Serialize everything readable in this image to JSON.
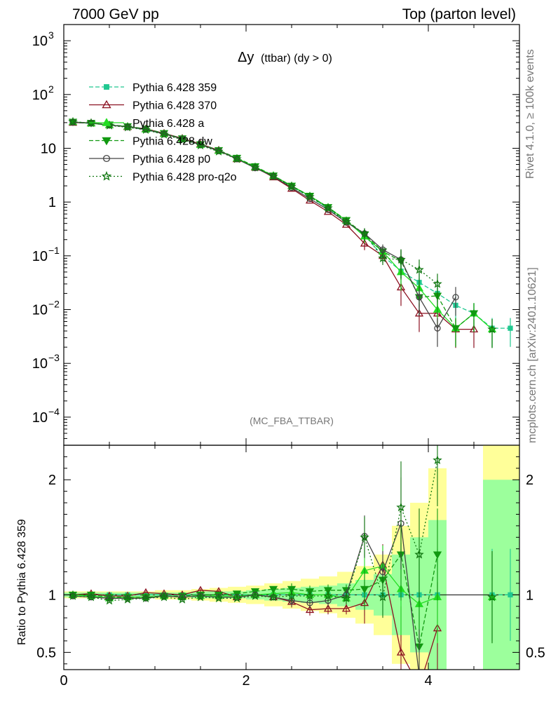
{
  "header": {
    "left": "7000 GeV pp",
    "right": "Top (parton level)"
  },
  "side": {
    "rivet": "Rivet 4.1.0, ≥ 100k events",
    "mcplots": "mcplots.cern.ch [arXiv:2401.10621]"
  },
  "colors": {
    "ref_band_inner": "#9cff9c",
    "ref_band_outer": "#ffff99"
  },
  "chart_data": {
    "type": "line",
    "title_main": "Δy",
    "title_sub": "(ttbar) (dy > 0)",
    "watermark": "(MC_FBA_TTBAR)",
    "xlim": [
      0,
      5.0
    ],
    "x_ticks": [
      "0",
      "2",
      "4"
    ],
    "x_tick_values": [
      0,
      2,
      4
    ],
    "main": {
      "yscale": "log",
      "ylim": [
        3e-05,
        2000
      ],
      "y_ticks": [
        {
          "v": 1000,
          "base": "10",
          "exp": "3"
        },
        {
          "v": 100,
          "base": "10",
          "exp": "2"
        },
        {
          "v": 10,
          "base": "10",
          "exp": ""
        },
        {
          "v": 1,
          "base": "1",
          "exp": ""
        },
        {
          "v": 0.1,
          "base": "10",
          "exp": "−1"
        },
        {
          "v": 0.01,
          "base": "10",
          "exp": "−2"
        },
        {
          "v": 0.001,
          "base": "10",
          "exp": "−3"
        },
        {
          "v": 0.0001,
          "base": "10",
          "exp": "−4"
        }
      ]
    },
    "ratio": {
      "ylabel": "Ratio to Pythia 6.428 359",
      "ylim": [
        0.35,
        2.3
      ],
      "y_ticks": [
        "0.5",
        "1",
        "2"
      ],
      "y_tick_values": [
        0.5,
        1,
        2
      ]
    },
    "x": [
      0.1,
      0.3,
      0.5,
      0.7,
      0.9,
      1.1,
      1.3,
      1.5,
      1.7,
      1.9,
      2.1,
      2.3,
      2.5,
      2.7,
      2.9,
      3.1,
      3.3,
      3.5,
      3.7,
      3.9,
      4.1,
      4.3,
      4.5,
      4.7,
      4.9
    ],
    "band_inner_half": [
      0.02,
      0.02,
      0.02,
      0.02,
      0.02,
      0.02,
      0.02,
      0.03,
      0.03,
      0.03,
      0.04,
      0.05,
      0.06,
      0.07,
      0.08,
      0.1,
      0.13,
      0.18,
      0.35,
      0.5,
      0.65,
      null,
      null,
      1.0,
      1.0
    ],
    "band_outer_half": [
      0.03,
      0.03,
      0.03,
      0.03,
      0.03,
      0.04,
      0.04,
      0.05,
      0.06,
      0.07,
      0.08,
      0.1,
      0.12,
      0.14,
      0.16,
      0.2,
      0.25,
      0.35,
      0.6,
      0.8,
      1.1,
      null,
      null,
      1.4,
      1.4
    ],
    "series": [
      {
        "name": "Pythia 6.428 359",
        "color": "#20c890",
        "dash": "6,3",
        "marker": "square",
        "filled": true,
        "values": [
          30,
          29,
          27,
          25,
          22,
          18.5,
          15,
          11.5,
          9,
          6.5,
          4.4,
          3.0,
          1.95,
          1.25,
          0.77,
          0.44,
          0.24,
          0.1,
          0.052,
          0.032,
          0.02,
          0.012,
          0.0085,
          0.0045,
          0.0045
        ],
        "ratio": [
          1,
          1,
          1,
          1,
          1,
          1,
          1,
          1,
          1,
          1,
          1,
          1,
          1,
          1,
          1,
          1,
          1,
          1,
          1,
          1,
          1,
          null,
          null,
          1,
          1
        ]
      },
      {
        "name": "Pythia 6.428 370",
        "color": "#8b1020",
        "dash": "",
        "marker": "triangle",
        "filled": false,
        "values": [
          30,
          29.5,
          27,
          25,
          23,
          19,
          15.3,
          12,
          9.2,
          6.3,
          4.4,
          2.9,
          1.78,
          1.07,
          0.66,
          0.38,
          0.17,
          0.1,
          0.026,
          0.0085,
          0.0085,
          0.0043,
          0.0043,
          null,
          null
        ],
        "ratio": [
          1.0,
          1.01,
          0.99,
          0.99,
          1.02,
          1.01,
          1.0,
          1.04,
          1.03,
          0.98,
          1.0,
          0.98,
          0.94,
          0.87,
          0.88,
          0.88,
          0.93,
          1.26,
          0.5,
          0.2,
          0.71,
          null,
          null,
          null,
          null
        ]
      },
      {
        "name": "Pythia 6.428 a",
        "color": "#22dd22",
        "dash": "",
        "marker": "triangle",
        "filled": true,
        "values": [
          31,
          29,
          27,
          25.5,
          22.5,
          18.5,
          15,
          11.6,
          9,
          6.5,
          4.5,
          3.1,
          2.0,
          1.3,
          0.8,
          0.45,
          0.23,
          0.12,
          0.05,
          0.025,
          0.01,
          0.0045,
          0.0085,
          0.0043,
          null
        ],
        "ratio": [
          1.0,
          0.99,
          0.97,
          0.98,
          0.98,
          0.99,
          0.98,
          0.99,
          0.99,
          0.99,
          1.0,
          1.01,
          1.02,
          1.0,
          1.0,
          0.97,
          1.21,
          1.25,
          1.05,
          0.92,
          0.98,
          null,
          null,
          0.98,
          null
        ]
      },
      {
        "name": "Pythia 6.428 dw",
        "color": "#119911",
        "dash": "6,3",
        "marker": "triangle-down",
        "filled": true,
        "values": [
          31,
          29.5,
          27.5,
          25.5,
          23,
          19,
          15.2,
          11.8,
          9.2,
          6.6,
          4.6,
          3.1,
          2.0,
          1.3,
          0.8,
          0.46,
          0.25,
          0.12,
          0.08,
          0.017,
          0.018,
          0.0045,
          0.0085,
          null,
          null
        ],
        "ratio": [
          1.0,
          1.0,
          0.98,
          0.98,
          0.98,
          0.99,
          0.99,
          1.0,
          1.0,
          1.01,
          1.03,
          1.05,
          1.05,
          1.03,
          1.04,
          1.04,
          1.05,
          1.13,
          1.35,
          0.55,
          1.35,
          null,
          null,
          null,
          null
        ]
      },
      {
        "name": "Pythia 6.428 p0",
        "color": "#444444",
        "dash": "",
        "marker": "circle",
        "filled": false,
        "values": [
          30.5,
          29.5,
          27,
          25,
          22.5,
          18.5,
          15,
          11.6,
          9,
          6.3,
          4.3,
          3.0,
          1.85,
          1.15,
          0.72,
          0.42,
          0.26,
          0.13,
          0.085,
          0.017,
          0.0045,
          0.017,
          null,
          null,
          null
        ],
        "ratio": [
          0.99,
          0.98,
          0.97,
          0.97,
          0.97,
          0.99,
          0.98,
          0.99,
          0.98,
          0.98,
          1.0,
          0.98,
          0.95,
          0.93,
          0.95,
          1.0,
          1.51,
          1.2,
          1.62,
          0.3,
          0.25,
          null,
          null,
          null,
          null
        ]
      },
      {
        "name": "Pythia 6.428 pro-q2o",
        "color": "#117711",
        "dash": "2,3",
        "marker": "star",
        "filled": false,
        "values": [
          31,
          29.5,
          26.5,
          24.5,
          22,
          18,
          14.5,
          11.3,
          8.7,
          6.3,
          4.4,
          3.0,
          1.95,
          1.25,
          0.77,
          0.43,
          0.26,
          0.09,
          0.085,
          0.055,
          0.03,
          null,
          null,
          0.0043,
          null
        ],
        "ratio": [
          0.99,
          0.98,
          0.95,
          0.96,
          0.97,
          0.98,
          0.96,
          0.98,
          0.97,
          0.97,
          0.99,
          0.98,
          0.99,
          0.99,
          0.99,
          0.97,
          1.5,
          0.98,
          1.76,
          1.35,
          2.17,
          null,
          null,
          0.98,
          null
        ]
      }
    ]
  }
}
